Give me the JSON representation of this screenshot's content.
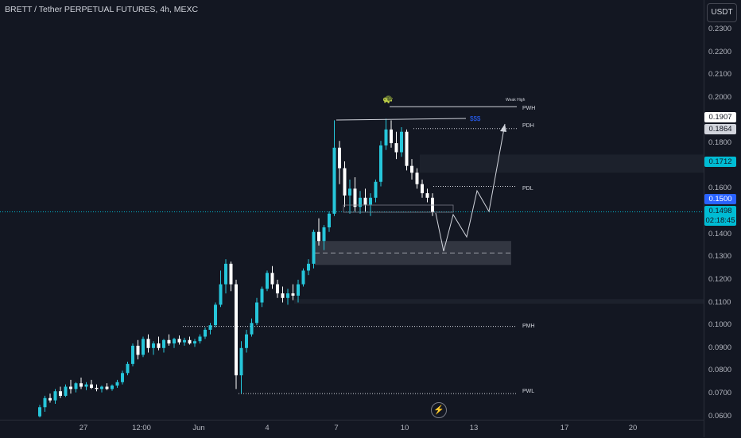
{
  "header": {
    "title": "BRETT / Tether PERPETUAL FUTURES, 4h, MEXC",
    "currency": "USDT"
  },
  "price_axis": {
    "ticks": [
      "0.2300",
      "0.2200",
      "0.2100",
      "0.2000",
      "0.1800",
      "0.1600",
      "0.1400",
      "0.1300",
      "0.1200",
      "0.1100",
      "0.1000",
      "0.0900",
      "0.0800",
      "0.0700",
      "0.0600"
    ],
    "tags": {
      "high_label": "0.1907",
      "pdh_label": "0.1864",
      "zone_label": "0.1712",
      "alert_label": "0.1500",
      "last_price": "0.1498",
      "countdown": "02:18:45"
    }
  },
  "time_axis": {
    "ticks": [
      "27",
      "12:00",
      "Jun",
      "4",
      "7",
      "10",
      "13",
      "17",
      "20"
    ]
  },
  "annotations": {
    "pwh": "PWH",
    "pdh": "PDH",
    "pdl": "PDL",
    "pmh": "PMH",
    "pwl": "PWL",
    "weak_high": "Weak High",
    "liquidity": "$$$"
  },
  "colors": {
    "background": "#131722",
    "bull": "#26c6da",
    "bear": "#ffffff",
    "last_price_bg": "#00bcd4",
    "alert_bg": "#2962ff",
    "zone_tag_bg": "#00bcd4"
  },
  "chart_data": {
    "type": "candlestick",
    "interval": "4h",
    "price_range": [
      0.0585,
      0.2345
    ],
    "candles": [
      [
        0.06,
        0.065,
        0.0595,
        0.064
      ],
      [
        0.064,
        0.069,
        0.062,
        0.068
      ],
      [
        0.068,
        0.07,
        0.066,
        0.067
      ],
      [
        0.067,
        0.072,
        0.0655,
        0.071
      ],
      [
        0.071,
        0.073,
        0.068,
        0.069
      ],
      [
        0.069,
        0.074,
        0.0685,
        0.073
      ],
      [
        0.073,
        0.076,
        0.07,
        0.072
      ],
      [
        0.072,
        0.075,
        0.0705,
        0.0745
      ],
      [
        0.0745,
        0.077,
        0.072,
        0.073
      ],
      [
        0.073,
        0.075,
        0.0715,
        0.074
      ],
      [
        0.074,
        0.076,
        0.072,
        0.0725
      ],
      [
        0.0725,
        0.074,
        0.071,
        0.072
      ],
      [
        0.072,
        0.0735,
        0.0705,
        0.073
      ],
      [
        0.073,
        0.0745,
        0.0715,
        0.072
      ],
      [
        0.072,
        0.074,
        0.0712,
        0.0735
      ],
      [
        0.0735,
        0.076,
        0.0725,
        0.075
      ],
      [
        0.075,
        0.08,
        0.074,
        0.079
      ],
      [
        0.079,
        0.084,
        0.078,
        0.083
      ],
      [
        0.083,
        0.092,
        0.082,
        0.091
      ],
      [
        0.091,
        0.0935,
        0.085,
        0.087
      ],
      [
        0.087,
        0.095,
        0.086,
        0.094
      ],
      [
        0.094,
        0.096,
        0.088,
        0.09
      ],
      [
        0.09,
        0.093,
        0.087,
        0.092
      ],
      [
        0.092,
        0.095,
        0.089,
        0.09
      ],
      [
        0.09,
        0.094,
        0.088,
        0.0935
      ],
      [
        0.0935,
        0.096,
        0.091,
        0.092
      ],
      [
        0.092,
        0.0945,
        0.09,
        0.094
      ],
      [
        0.094,
        0.0955,
        0.0915,
        0.0925
      ],
      [
        0.0925,
        0.0945,
        0.091,
        0.0935
      ],
      [
        0.0935,
        0.095,
        0.0915,
        0.092
      ],
      [
        0.092,
        0.094,
        0.0905,
        0.093
      ],
      [
        0.093,
        0.096,
        0.092,
        0.095
      ],
      [
        0.095,
        0.099,
        0.094,
        0.098
      ],
      [
        0.098,
        0.101,
        0.096,
        0.1
      ],
      [
        0.1,
        0.11,
        0.099,
        0.109
      ],
      [
        0.109,
        0.124,
        0.108,
        0.118
      ],
      [
        0.118,
        0.129,
        0.114,
        0.127
      ],
      [
        0.127,
        0.128,
        0.115,
        0.118
      ],
      [
        0.118,
        0.12,
        0.072,
        0.078
      ],
      [
        0.078,
        0.093,
        0.07,
        0.09
      ],
      [
        0.09,
        0.098,
        0.088,
        0.096
      ],
      [
        0.096,
        0.103,
        0.095,
        0.101
      ],
      [
        0.101,
        0.112,
        0.1,
        0.11
      ],
      [
        0.11,
        0.117,
        0.108,
        0.116
      ],
      [
        0.116,
        0.124,
        0.115,
        0.123
      ],
      [
        0.123,
        0.126,
        0.116,
        0.118
      ],
      [
        0.118,
        0.12,
        0.112,
        0.114
      ],
      [
        0.114,
        0.117,
        0.11,
        0.112
      ],
      [
        0.112,
        0.116,
        0.109,
        0.114
      ],
      [
        0.114,
        0.118,
        0.111,
        0.113
      ],
      [
        0.113,
        0.12,
        0.11,
        0.118
      ],
      [
        0.118,
        0.125,
        0.117,
        0.124
      ],
      [
        0.124,
        0.129,
        0.122,
        0.127
      ],
      [
        0.127,
        0.142,
        0.125,
        0.141
      ],
      [
        0.141,
        0.147,
        0.135,
        0.137
      ],
      [
        0.137,
        0.144,
        0.133,
        0.143
      ],
      [
        0.143,
        0.15,
        0.141,
        0.149
      ],
      [
        0.149,
        0.19,
        0.148,
        0.178
      ],
      [
        0.178,
        0.181,
        0.162,
        0.169
      ],
      [
        0.169,
        0.172,
        0.152,
        0.157
      ],
      [
        0.157,
        0.164,
        0.149,
        0.16
      ],
      [
        0.16,
        0.165,
        0.15,
        0.152
      ],
      [
        0.152,
        0.159,
        0.149,
        0.156
      ],
      [
        0.156,
        0.16,
        0.15,
        0.153
      ],
      [
        0.153,
        0.158,
        0.148,
        0.156
      ],
      [
        0.156,
        0.164,
        0.154,
        0.163
      ],
      [
        0.163,
        0.181,
        0.161,
        0.179
      ],
      [
        0.179,
        0.1907,
        0.177,
        0.186
      ],
      [
        0.186,
        0.19,
        0.178,
        0.18
      ],
      [
        0.18,
        0.185,
        0.173,
        0.176
      ],
      [
        0.176,
        0.187,
        0.174,
        0.185
      ],
      [
        0.185,
        0.186,
        0.168,
        0.17
      ],
      [
        0.17,
        0.173,
        0.164,
        0.167
      ],
      [
        0.167,
        0.169,
        0.16,
        0.162
      ],
      [
        0.162,
        0.164,
        0.156,
        0.158
      ],
      [
        0.158,
        0.16,
        0.154,
        0.156
      ],
      [
        0.156,
        0.158,
        0.148,
        0.1498
      ]
    ],
    "levels": [
      {
        "name": "PWH",
        "value": 0.196
      },
      {
        "name": "PDH",
        "value": 0.1864
      },
      {
        "name": "PDL",
        "value": 0.161
      },
      {
        "name": "PMH",
        "value": 0.0995
      },
      {
        "name": "PWL",
        "value": 0.07
      },
      {
        "name": "last_price",
        "value": 0.1498
      }
    ],
    "zones": [
      {
        "from": 0.167,
        "to": 0.175
      },
      {
        "from": 0.1265,
        "to": 0.137
      },
      {
        "from": 0.1095,
        "to": 0.1115
      }
    ]
  }
}
